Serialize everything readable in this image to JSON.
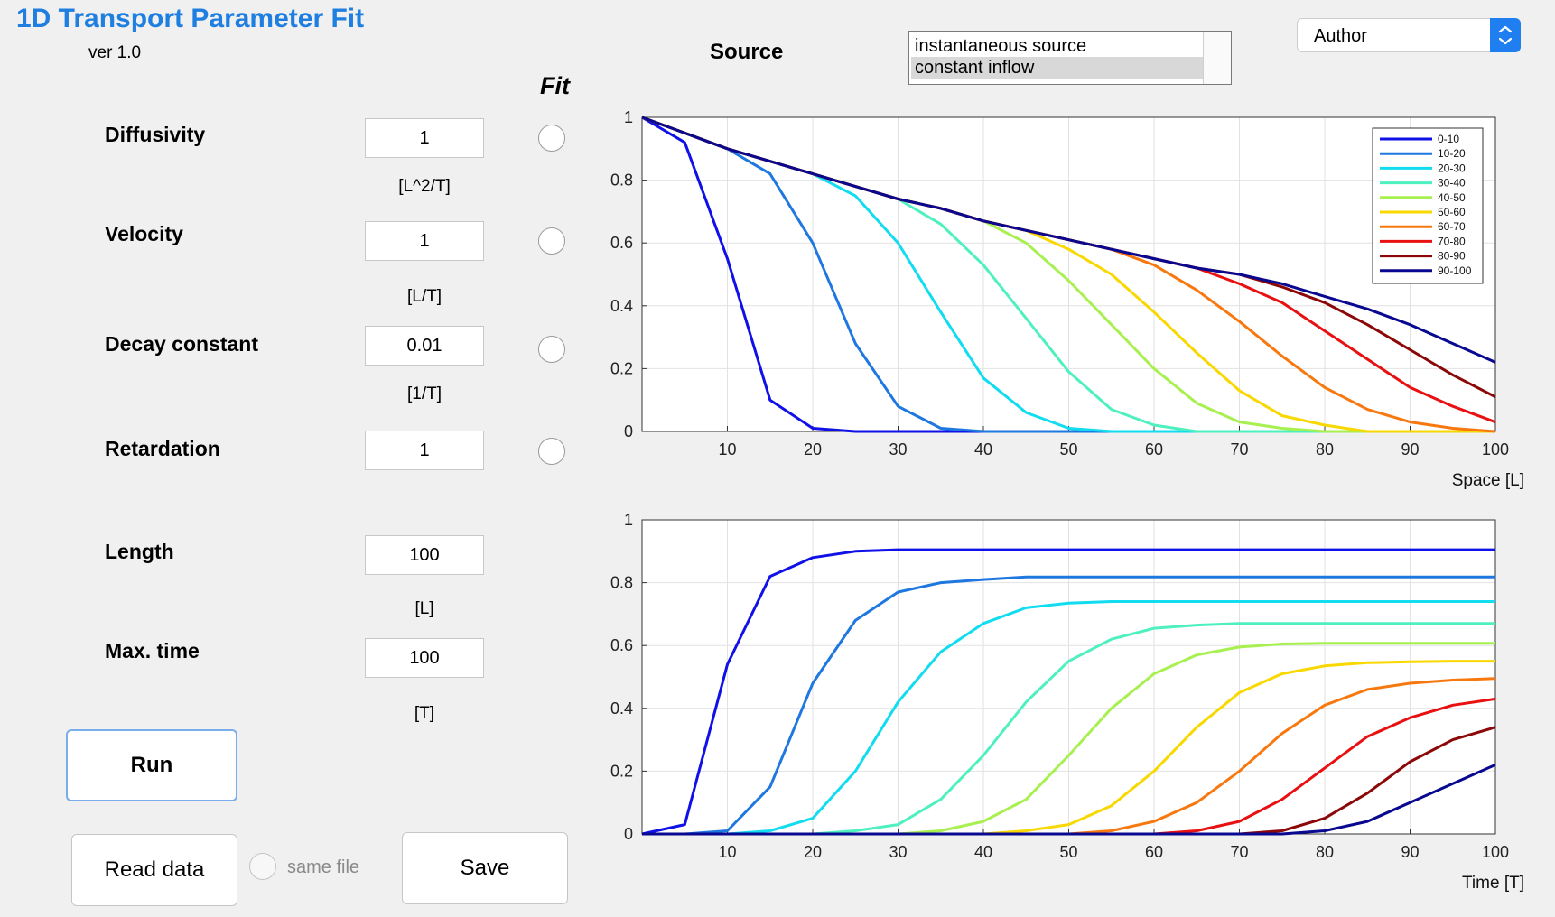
{
  "app": {
    "title": "1D Transport Parameter Fit",
    "version": "ver 1.0"
  },
  "fit_header": "Fit",
  "params": [
    {
      "label": "Diffusivity",
      "value": "1",
      "unit": "[L^2/T]"
    },
    {
      "label": "Velocity",
      "value": "1",
      "unit": "[L/T]"
    },
    {
      "label": "Decay constant",
      "value": "0.01",
      "unit": "[1/T]"
    },
    {
      "label": "Retardation",
      "value": "1"
    },
    {
      "label": "Length",
      "value": "100",
      "unit": "[L]"
    },
    {
      "label": "Max. time",
      "value": "100",
      "unit": "[T]"
    }
  ],
  "buttons": {
    "run": "Run",
    "read_data": "Read data",
    "save": "Save"
  },
  "same_file_label": "same file",
  "source": {
    "label": "Source",
    "options": [
      "instantaneous source",
      "constant inflow"
    ],
    "selected": "constant inflow"
  },
  "author_select": {
    "value": "Author"
  },
  "colors": {
    "title": "#1e7fe0",
    "series": [
      "#1010e8",
      "#1e78e0",
      "#12dcf0",
      "#4ef0c0",
      "#a8f050",
      "#f8d800",
      "#f87810",
      "#e81010",
      "#8c0808",
      "#080890"
    ]
  },
  "chart_data": [
    {
      "type": "line",
      "xlabel": "Space [L]",
      "xlim": [
        0,
        100
      ],
      "ylim": [
        0,
        1
      ],
      "xticks": [
        "10",
        "20",
        "30",
        "40",
        "50",
        "60",
        "70",
        "80",
        "90",
        "100"
      ],
      "yticks": [
        "0",
        "0.2",
        "0.4",
        "0.6",
        "0.8",
        "1"
      ],
      "grid": true,
      "legend": "top-right",
      "x": [
        0,
        5,
        10,
        15,
        20,
        25,
        30,
        35,
        40,
        45,
        50,
        55,
        60,
        65,
        70,
        75,
        80,
        85,
        90,
        95,
        100
      ],
      "series": [
        {
          "name": "0-10",
          "values": [
            1,
            0.92,
            0.55,
            0.1,
            0.01,
            0,
            0,
            0,
            0,
            0,
            0,
            0,
            0,
            0,
            0,
            0,
            0,
            0,
            0,
            0,
            0
          ]
        },
        {
          "name": "10-20",
          "values": [
            1,
            0.95,
            0.9,
            0.82,
            0.6,
            0.28,
            0.08,
            0.01,
            0,
            0,
            0,
            0,
            0,
            0,
            0,
            0,
            0,
            0,
            0,
            0,
            0
          ]
        },
        {
          "name": "20-30",
          "values": [
            1,
            0.95,
            0.9,
            0.86,
            0.82,
            0.75,
            0.6,
            0.38,
            0.17,
            0.06,
            0.01,
            0,
            0,
            0,
            0,
            0,
            0,
            0,
            0,
            0,
            0
          ]
        },
        {
          "name": "30-40",
          "values": [
            1,
            0.95,
            0.9,
            0.86,
            0.82,
            0.78,
            0.74,
            0.66,
            0.53,
            0.36,
            0.19,
            0.07,
            0.02,
            0,
            0,
            0,
            0,
            0,
            0,
            0,
            0
          ]
        },
        {
          "name": "40-50",
          "values": [
            1,
            0.95,
            0.9,
            0.86,
            0.82,
            0.78,
            0.74,
            0.71,
            0.67,
            0.6,
            0.48,
            0.34,
            0.2,
            0.09,
            0.03,
            0.01,
            0,
            0,
            0,
            0,
            0
          ]
        },
        {
          "name": "50-60",
          "values": [
            1,
            0.95,
            0.9,
            0.86,
            0.82,
            0.78,
            0.74,
            0.71,
            0.67,
            0.64,
            0.58,
            0.5,
            0.38,
            0.25,
            0.13,
            0.05,
            0.02,
            0,
            0,
            0,
            0
          ]
        },
        {
          "name": "60-70",
          "values": [
            1,
            0.95,
            0.9,
            0.86,
            0.82,
            0.78,
            0.74,
            0.71,
            0.67,
            0.64,
            0.61,
            0.58,
            0.53,
            0.45,
            0.35,
            0.24,
            0.14,
            0.07,
            0.03,
            0.01,
            0
          ]
        },
        {
          "name": "70-80",
          "values": [
            1,
            0.95,
            0.9,
            0.86,
            0.82,
            0.78,
            0.74,
            0.71,
            0.67,
            0.64,
            0.61,
            0.58,
            0.55,
            0.52,
            0.47,
            0.41,
            0.32,
            0.23,
            0.14,
            0.08,
            0.03
          ]
        },
        {
          "name": "80-90",
          "values": [
            1,
            0.95,
            0.9,
            0.86,
            0.82,
            0.78,
            0.74,
            0.71,
            0.67,
            0.64,
            0.61,
            0.58,
            0.55,
            0.52,
            0.5,
            0.46,
            0.41,
            0.34,
            0.26,
            0.18,
            0.11
          ]
        },
        {
          "name": "90-100",
          "values": [
            1,
            0.95,
            0.9,
            0.86,
            0.82,
            0.78,
            0.74,
            0.71,
            0.67,
            0.64,
            0.61,
            0.58,
            0.55,
            0.52,
            0.5,
            0.47,
            0.43,
            0.39,
            0.34,
            0.28,
            0.22
          ]
        }
      ]
    },
    {
      "type": "line",
      "xlabel": "Time [T]",
      "xlim": [
        0,
        100
      ],
      "ylim": [
        0,
        1
      ],
      "xticks": [
        "10",
        "20",
        "30",
        "40",
        "50",
        "60",
        "70",
        "80",
        "90",
        "100"
      ],
      "yticks": [
        "0",
        "0.2",
        "0.4",
        "0.6",
        "0.8",
        "1"
      ],
      "grid": true,
      "x": [
        0,
        5,
        10,
        15,
        20,
        25,
        30,
        35,
        40,
        45,
        50,
        55,
        60,
        65,
        70,
        75,
        80,
        85,
        90,
        95,
        100
      ],
      "series": [
        {
          "values": [
            0,
            0.03,
            0.54,
            0.82,
            0.88,
            0.9,
            0.905,
            0.905,
            0.905,
            0.905,
            0.905,
            0.905,
            0.905,
            0.905,
            0.905,
            0.905,
            0.905,
            0.905,
            0.905,
            0.905,
            0.905
          ]
        },
        {
          "values": [
            0,
            0,
            0.01,
            0.15,
            0.48,
            0.68,
            0.77,
            0.8,
            0.81,
            0.818,
            0.818,
            0.818,
            0.818,
            0.818,
            0.818,
            0.818,
            0.818,
            0.818,
            0.818,
            0.818,
            0.818
          ]
        },
        {
          "values": [
            0,
            0,
            0,
            0.01,
            0.05,
            0.2,
            0.42,
            0.58,
            0.67,
            0.72,
            0.735,
            0.74,
            0.74,
            0.74,
            0.74,
            0.74,
            0.74,
            0.74,
            0.74,
            0.74,
            0.74
          ]
        },
        {
          "values": [
            0,
            0,
            0,
            0,
            0,
            0.01,
            0.03,
            0.11,
            0.25,
            0.42,
            0.55,
            0.62,
            0.655,
            0.665,
            0.67,
            0.67,
            0.67,
            0.67,
            0.67,
            0.67,
            0.67
          ]
        },
        {
          "values": [
            0,
            0,
            0,
            0,
            0,
            0,
            0,
            0.01,
            0.04,
            0.11,
            0.25,
            0.4,
            0.51,
            0.57,
            0.595,
            0.605,
            0.607,
            0.607,
            0.607,
            0.607,
            0.607
          ]
        },
        {
          "values": [
            0,
            0,
            0,
            0,
            0,
            0,
            0,
            0,
            0,
            0.01,
            0.03,
            0.09,
            0.2,
            0.34,
            0.45,
            0.51,
            0.535,
            0.545,
            0.548,
            0.55,
            0.55
          ]
        },
        {
          "values": [
            0,
            0,
            0,
            0,
            0,
            0,
            0,
            0,
            0,
            0,
            0,
            0.01,
            0.04,
            0.1,
            0.2,
            0.32,
            0.41,
            0.46,
            0.48,
            0.49,
            0.495
          ]
        },
        {
          "values": [
            0,
            0,
            0,
            0,
            0,
            0,
            0,
            0,
            0,
            0,
            0,
            0,
            0,
            0.01,
            0.04,
            0.11,
            0.21,
            0.31,
            0.37,
            0.41,
            0.43
          ]
        },
        {
          "values": [
            0,
            0,
            0,
            0,
            0,
            0,
            0,
            0,
            0,
            0,
            0,
            0,
            0,
            0,
            0,
            0.01,
            0.05,
            0.13,
            0.23,
            0.3,
            0.34
          ]
        },
        {
          "values": [
            0,
            0,
            0,
            0,
            0,
            0,
            0,
            0,
            0,
            0,
            0,
            0,
            0,
            0,
            0,
            0,
            0.01,
            0.04,
            0.1,
            0.16,
            0.22
          ]
        }
      ]
    }
  ]
}
